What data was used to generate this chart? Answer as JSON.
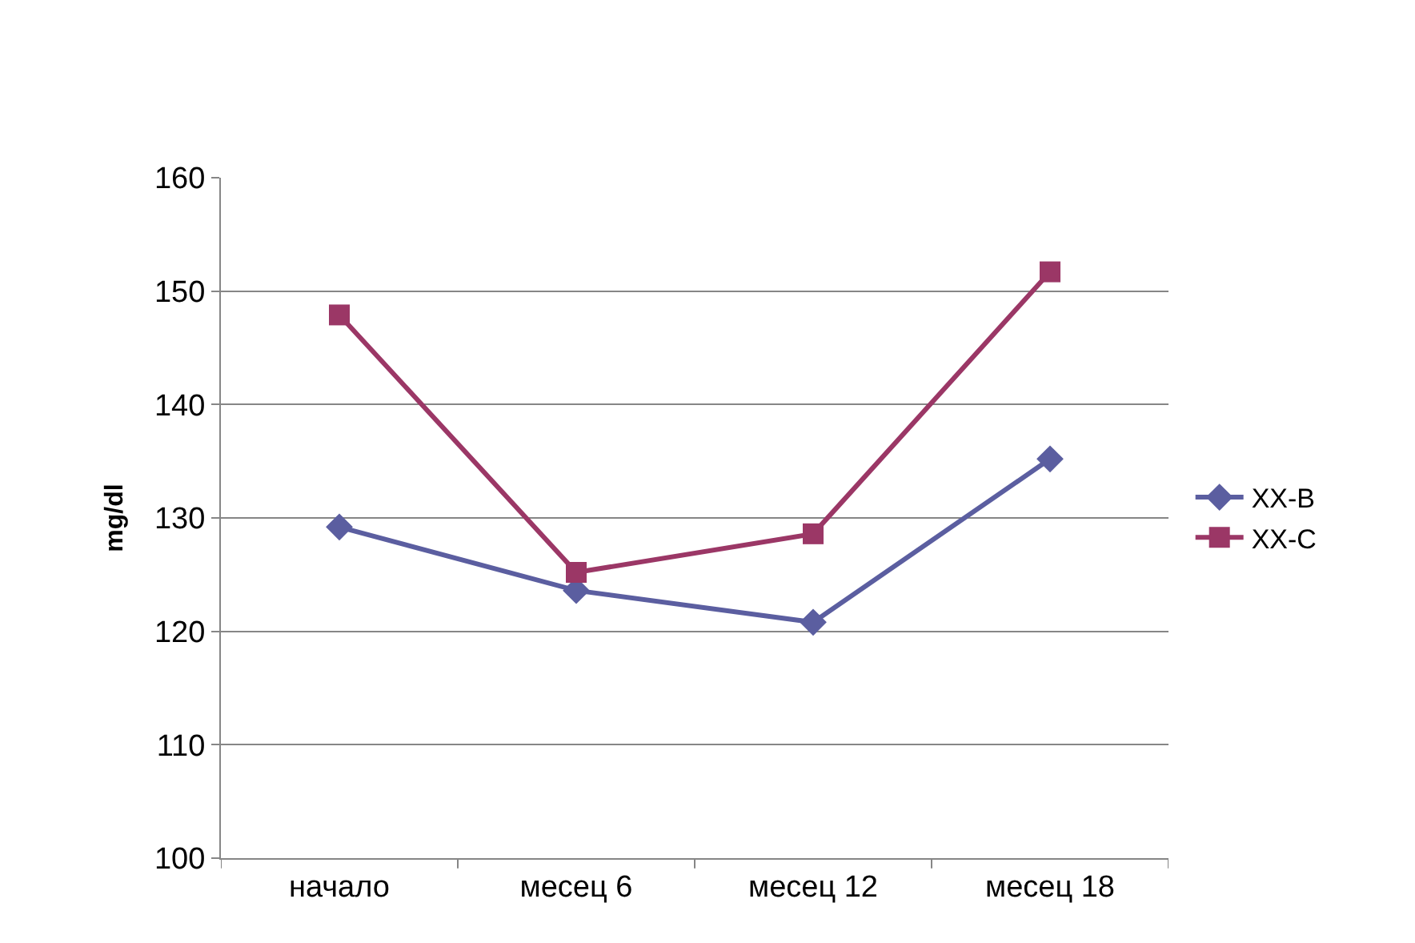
{
  "chart_data": {
    "type": "line",
    "ylabel": "mg/dl",
    "categories": [
      "начало",
      "месец 6",
      "месец 12",
      "месец 18"
    ],
    "series": [
      {
        "name": "XX-B",
        "color": "#5b5ea0",
        "marker": "diamond",
        "values": [
          129.2,
          123.6,
          120.8,
          135.2
        ]
      },
      {
        "name": "XX-C",
        "color": "#9b3766",
        "marker": "square",
        "values": [
          147.9,
          125.2,
          128.6,
          151.7
        ]
      }
    ],
    "ylim": [
      100,
      160
    ],
    "yticks": [
      100,
      110,
      120,
      130,
      140,
      150,
      160
    ],
    "grid": "y",
    "legend": "right",
    "line_style": "solid"
  }
}
